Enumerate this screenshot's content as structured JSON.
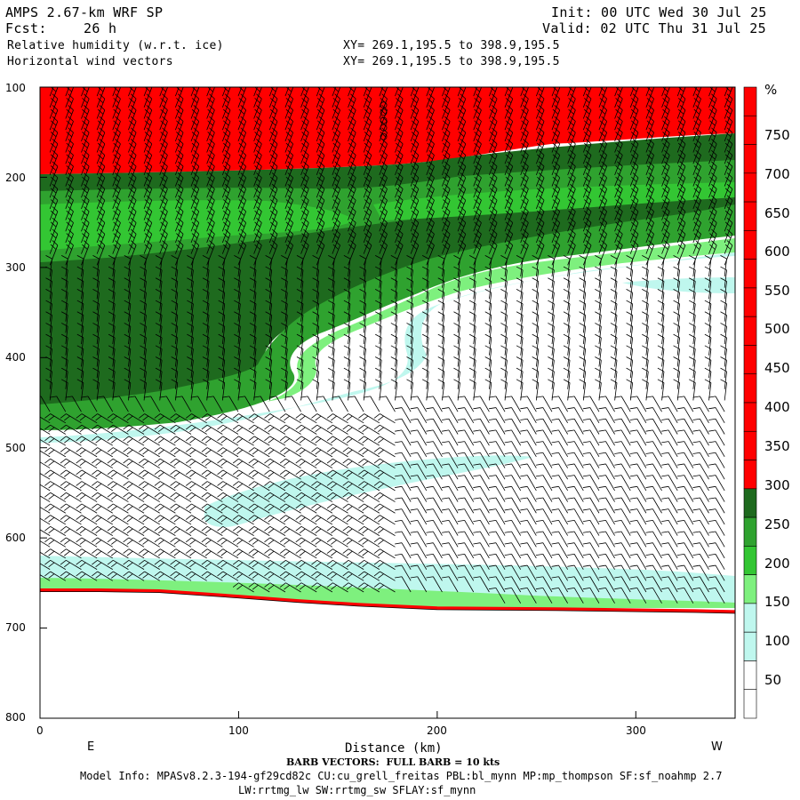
{
  "header": {
    "title": "AMPS 2.67-km WRF SP",
    "fcst_label": "Fcst:",
    "fcst_value": "26 h",
    "init": "Init: 00 UTC Wed 30 Jul 25",
    "valid": "Valid: 02 UTC Thu 31 Jul 25",
    "field1": "Relative humidity (w.r.t. ice)",
    "field2": "Horizontal wind vectors",
    "xy1": "XY= 269.1,195.5 to 398.9,195.5",
    "xy2": "XY= 269.1,195.5 to 398.9,195.5"
  },
  "footer": {
    "barb_note": "BARB VECTORS:  FULL BARB = 10 kts",
    "model_info": "Model Info: MPASv8.2.3-194-gf29cd82c CU:cu_grell_freitas PBL:bl_mynn MP:mp_thompson SF:sf_noahmp 2.7",
    "model_info2": "LW:rrtmg_lw SW:rrtmg_sw SFLAY:sf_mynn"
  },
  "chart_data": {
    "type": "heatmap",
    "xlabel": "Distance (km)",
    "ylabel": "",
    "x_ticks": [
      "0",
      "100",
      "200",
      "300"
    ],
    "y_ticks": [
      "100",
      "200",
      "300",
      "400",
      "500",
      "600",
      "700",
      "800"
    ],
    "xlim": [
      0,
      350
    ],
    "ylim": [
      100,
      800
    ],
    "left_end_label": "E",
    "right_end_label": "W",
    "colorbar": {
      "unit": "%",
      "labels": [
        "750",
        "700",
        "650",
        "600",
        "550",
        "500",
        "450",
        "400",
        "350",
        "300",
        "250",
        "200",
        "150",
        "100",
        "50"
      ],
      "colors": {
        "saturated": "#ff0000",
        "very_moist": "#1e6a1e",
        "moist": "#2fa22f",
        "green_mid": "#33c633",
        "green_light": "#7ef07e",
        "cyan": "#bff7ee",
        "dry": "#ffffff"
      }
    },
    "terrain_surface": [
      [
        0,
        660
      ],
      [
        30,
        660
      ],
      [
        60,
        661
      ],
      [
        80,
        664
      ],
      [
        100,
        667
      ],
      [
        130,
        672
      ],
      [
        160,
        676
      ],
      [
        200,
        680
      ],
      [
        260,
        681
      ],
      [
        330,
        683
      ],
      [
        350,
        684
      ]
    ]
  }
}
